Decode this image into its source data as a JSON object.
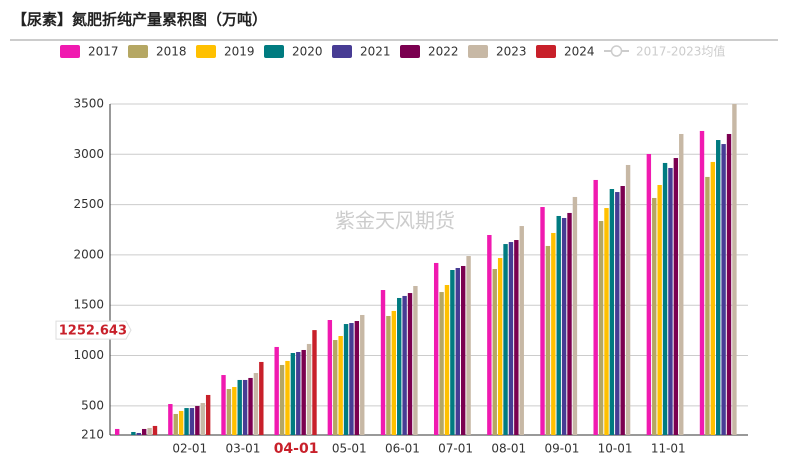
{
  "chart_data": {
    "type": "bar",
    "title": "【尿素】氮肥折纯产量累积图（万吨）",
    "watermark": "紫金天风期货",
    "categories": [
      null,
      "02-01",
      "03-01",
      "04-01",
      "05-01",
      "06-01",
      "07-01",
      "08-01",
      "09-01",
      "10-01",
      "11-01",
      null
    ],
    "highlight_category_index": 3,
    "axis_pointer": {
      "value": 1252.643,
      "label": "1252.643"
    },
    "series": [
      {
        "name": "2017",
        "color": "#f01ab0",
        "values": [
          270,
          518,
          806,
          1085,
          1353,
          1651,
          1920,
          2198,
          2476,
          2745,
          3003,
          3232
        ]
      },
      {
        "name": "2018",
        "color": "#b5a763",
        "values": [
          null,
          419,
          667,
          906,
          1154,
          1393,
          1631,
          1860,
          2089,
          2337,
          2566,
          2775
        ]
      },
      {
        "name": "2019",
        "color": "#ffc000",
        "values": [
          null,
          449,
          687,
          946,
          1194,
          1443,
          1701,
          1969,
          2218,
          2466,
          2695,
          2924
        ]
      },
      {
        "name": "2020",
        "color": "#007b80",
        "values": [
          240,
          478,
          757,
          1025,
          1313,
          1572,
          1850,
          2108,
          2387,
          2655,
          2914,
          3142
        ]
      },
      {
        "name": "2021",
        "color": "#473c94",
        "values": [
          230,
          478,
          757,
          1035,
          1323,
          1592,
          1870,
          2128,
          2367,
          2625,
          2864,
          3102
        ]
      },
      {
        "name": "2022",
        "color": "#7b0050",
        "values": [
          270,
          498,
          777,
          1055,
          1343,
          1621,
          1890,
          2148,
          2417,
          2685,
          2963,
          3202
        ]
      },
      {
        "name": "2023",
        "color": "#c7b8a5",
        "values": [
          280,
          528,
          826,
          1115,
          1403,
          1691,
          1989,
          2287,
          2576,
          2894,
          3202,
          3500
        ]
      },
      {
        "name": "2024",
        "color": "#c8202a",
        "values": [
          300,
          608,
          936,
          1252.643,
          null,
          null,
          null,
          null,
          null,
          null,
          null,
          null
        ]
      },
      {
        "name": "2017-2023均值",
        "color": "#cccccc",
        "type": "line",
        "hidden": true,
        "values": [
          null,
          null,
          null,
          null,
          null,
          null,
          null,
          null,
          null,
          null,
          null,
          null
        ]
      }
    ],
    "ylim": [
      210,
      3500
    ],
    "yticks": [
      210,
      500,
      1000,
      1500,
      2000,
      2500,
      3000,
      3500
    ],
    "grid": true
  }
}
